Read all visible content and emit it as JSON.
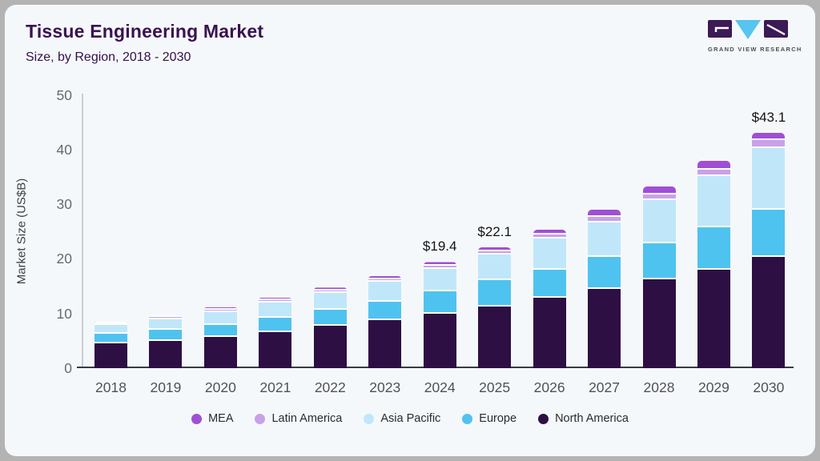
{
  "header": {
    "title": "Tissue Engineering Market",
    "subtitle": "Size, by Region, 2018 - 2030"
  },
  "logo": {
    "text": "GRAND VIEW RESEARCH",
    "block_color": "#3b1a55",
    "triangle_color": "#56c5ef"
  },
  "colors": {
    "card_background": "#f5f8fa",
    "outer_background": "#b3b3b3",
    "title_text": "#3a1252",
    "axis_line": "#3b3b41",
    "y_axis_line": "#c9ced4",
    "tick_text": "#67696e"
  },
  "chart_data": {
    "type": "bar",
    "stacked": true,
    "title": "Tissue Engineering Market",
    "subtitle": "Size, by Region, 2018 - 2030",
    "xlabel": "",
    "ylabel": "Market Size (US$B)",
    "ylim": [
      0,
      50
    ],
    "yticks": [
      0,
      10,
      20,
      30,
      40,
      50
    ],
    "grid": false,
    "legend_position": "bottom",
    "categories": [
      "2018",
      "2019",
      "2020",
      "2021",
      "2022",
      "2023",
      "2024",
      "2025",
      "2026",
      "2027",
      "2028",
      "2029",
      "2030"
    ],
    "series": [
      {
        "name": "North America",
        "color": "#2d0f44",
        "values": [
          4.6,
          5.0,
          5.7,
          6.6,
          7.7,
          8.8,
          10.0,
          11.3,
          12.85,
          14.5,
          16.2,
          18.0,
          20.4
        ]
      },
      {
        "name": "Europe",
        "color": "#4fc3ef",
        "values": [
          1.7,
          2.0,
          2.2,
          2.6,
          3.0,
          3.4,
          4.1,
          4.8,
          5.15,
          5.9,
          6.7,
          7.8,
          8.6
        ]
      },
      {
        "name": "Asia Pacific",
        "color": "#c0e7f9",
        "values": [
          1.6,
          1.9,
          2.4,
          2.8,
          3.0,
          3.6,
          4.1,
          4.7,
          5.7,
          6.3,
          7.8,
          9.4,
          11.2
        ]
      },
      {
        "name": "Latin America",
        "color": "#c9a1e7",
        "values": [
          0.35,
          0.4,
          0.45,
          0.45,
          0.5,
          0.45,
          0.55,
          0.6,
          0.75,
          1.0,
          1.1,
          1.1,
          1.6
        ]
      },
      {
        "name": "MEA",
        "color": "#a04fd4",
        "values": [
          0.3,
          0.35,
          0.4,
          0.5,
          0.55,
          0.65,
          0.65,
          0.7,
          0.85,
          1.3,
          1.4,
          1.6,
          1.3
        ]
      }
    ],
    "annotations": [
      {
        "category": "2024",
        "label": "$19.4"
      },
      {
        "category": "2025",
        "label": "$22.1"
      },
      {
        "category": "2030",
        "label": "$43.1"
      }
    ],
    "legend_order": [
      "MEA",
      "Latin America",
      "Asia Pacific",
      "Europe",
      "North America"
    ]
  }
}
